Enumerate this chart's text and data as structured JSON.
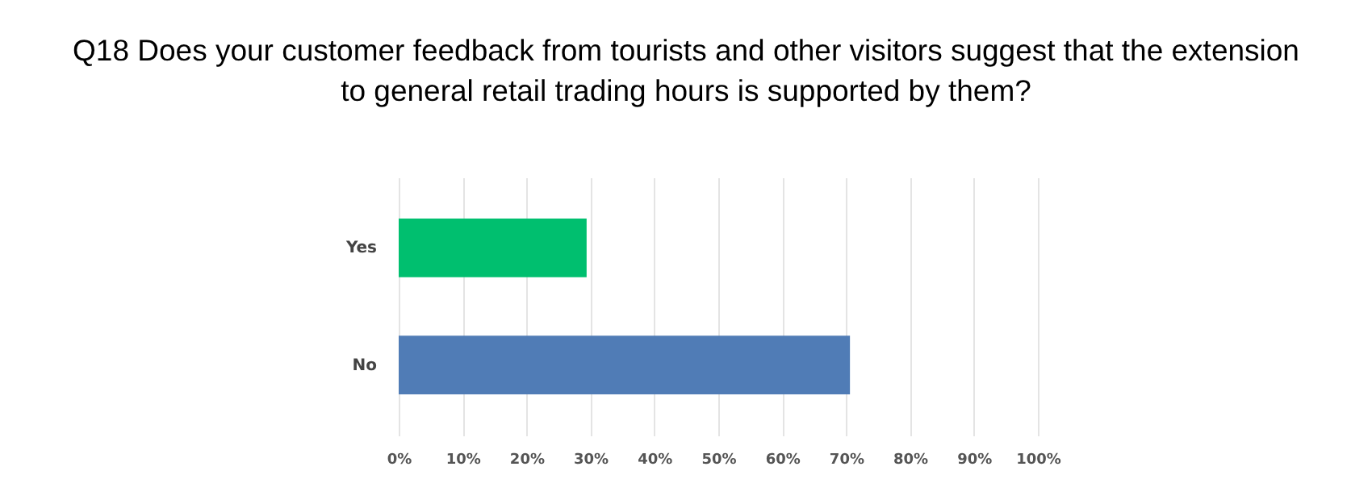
{
  "chart_data": {
    "type": "bar",
    "orientation": "horizontal",
    "title": "Q18 Does your customer feedback from tourists and other visitors suggest that the extension to general retail trading hours is supported by them?",
    "categories": [
      "Yes",
      "No"
    ],
    "values": [
      29.4,
      70.6
    ],
    "colors": [
      "#00bf6f",
      "#507cb6"
    ],
    "xlim": [
      0,
      100
    ],
    "xticks": [
      {
        "value": 0,
        "label": "0%"
      },
      {
        "value": 10,
        "label": "10%"
      },
      {
        "value": 20,
        "label": "20%"
      },
      {
        "value": 30,
        "label": "30%"
      },
      {
        "value": 40,
        "label": "40%"
      },
      {
        "value": 50,
        "label": "50%"
      },
      {
        "value": 60,
        "label": "60%"
      },
      {
        "value": 70,
        "label": "70%"
      },
      {
        "value": 80,
        "label": "80%"
      },
      {
        "value": 90,
        "label": "90%"
      },
      {
        "value": 100,
        "label": "100%"
      }
    ],
    "grid": "x"
  }
}
